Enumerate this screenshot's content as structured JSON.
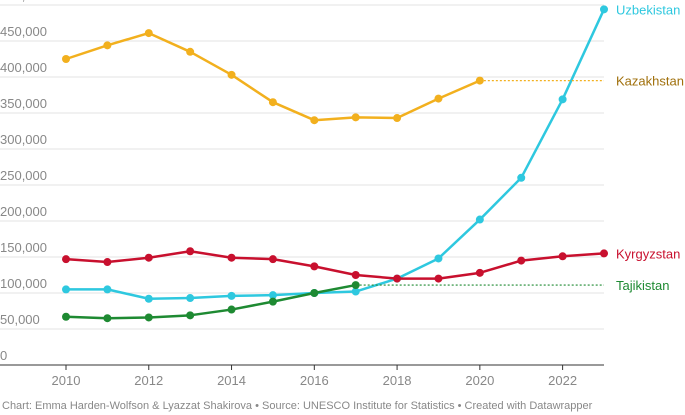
{
  "chart_data": {
    "type": "line",
    "title": "",
    "xlabel": "",
    "ylabel": "",
    "x": [
      2010,
      2011,
      2012,
      2013,
      2014,
      2015,
      2016,
      2017,
      2018,
      2019,
      2020,
      2021,
      2022,
      2023
    ],
    "xlim": [
      2010,
      2023
    ],
    "ylim": [
      0,
      500000
    ],
    "x_ticks": [
      2010,
      2012,
      2014,
      2016,
      2018,
      2020,
      2022
    ],
    "y_ticks": [
      0,
      50000,
      100000,
      150000,
      200000,
      250000,
      300000,
      350000,
      400000,
      450000,
      500000
    ],
    "y_tick_labels": [
      "0",
      "50,000",
      "100,000",
      "150,000",
      "200,000",
      "250,000",
      "300,000",
      "350,000",
      "400,000",
      "450,000",
      "500,000"
    ],
    "grid": true,
    "legend": "direct labels at right",
    "series": [
      {
        "name": "Uzbekistan",
        "color": "#2ec8df",
        "values": [
          105000,
          105000,
          92000,
          93000,
          96000,
          97000,
          100000,
          102000,
          120000,
          148000,
          202000,
          260000,
          369000,
          494000
        ]
      },
      {
        "name": "Kazakhstan",
        "color": "#f2b01e",
        "label_color": "#a0700c",
        "values": [
          425000,
          444000,
          461000,
          435000,
          403000,
          365000,
          340000,
          344000,
          343000,
          370000,
          395000,
          null,
          null,
          null
        ],
        "dotted_extension_to": 2023
      },
      {
        "name": "Kyrgyzstan",
        "color": "#c8102e",
        "values": [
          147000,
          143000,
          149000,
          158000,
          149000,
          147000,
          137000,
          125000,
          120000,
          120000,
          128000,
          145000,
          151000,
          155000
        ]
      },
      {
        "name": "Tajikistan",
        "color": "#1e8a32",
        "values": [
          67000,
          65000,
          66000,
          69000,
          77000,
          88000,
          100000,
          111000,
          null,
          null,
          null,
          null,
          null,
          null
        ],
        "dotted_extension_to": 2023
      }
    ]
  },
  "footer": "Chart: Emma Harden-Wolfson & Lyazzat Shakirova • Source: UNESCO Institute for Statistics • Created with Datawrapper"
}
